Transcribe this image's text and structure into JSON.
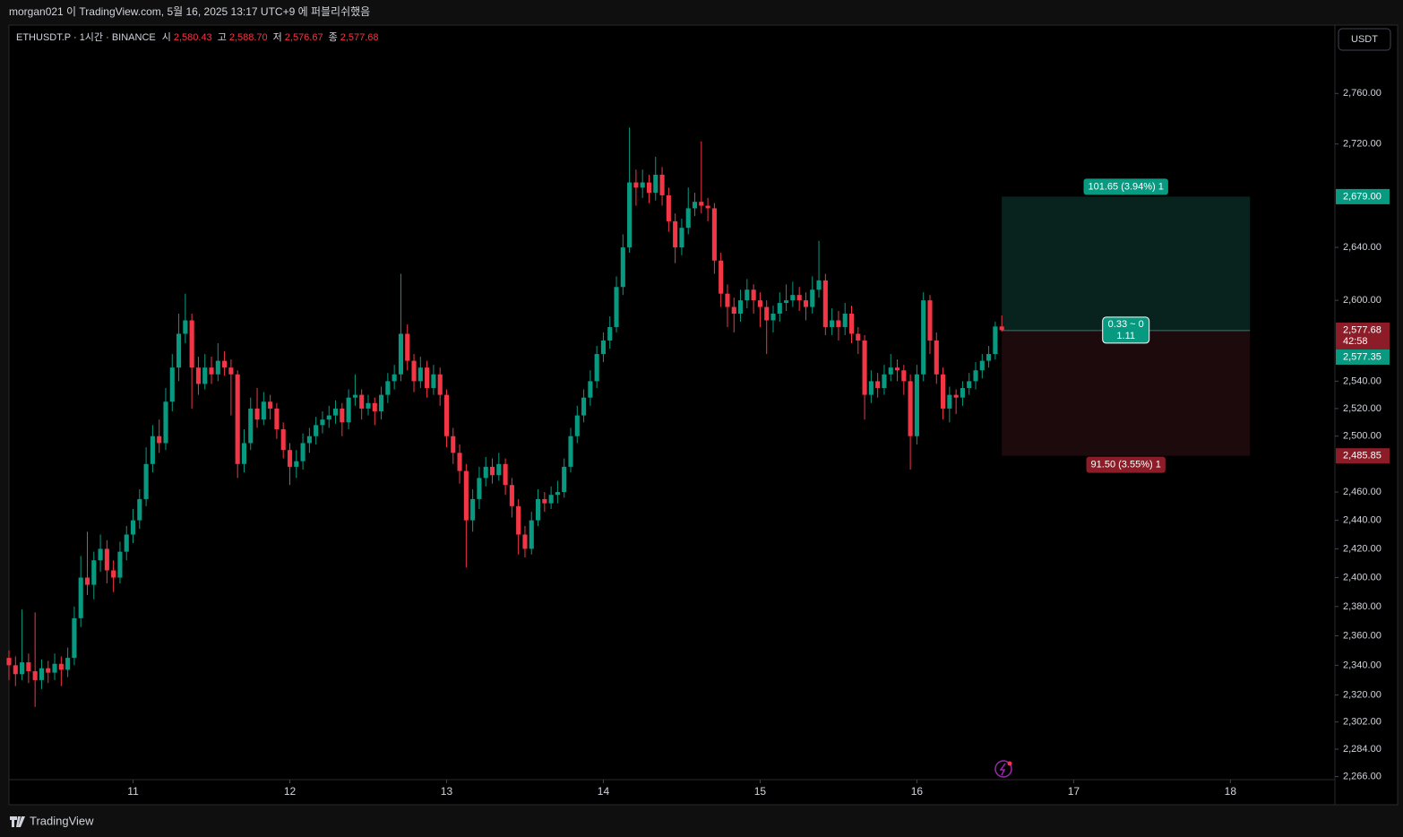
{
  "page": {
    "publish_note": "morgan021 이 TradingView.com, 5월 16, 2025 13:17 UTC+9 에 퍼블리쉬했음",
    "brand": "TradingView",
    "currency": "USDT"
  },
  "chart_data": {
    "type": "candlestick",
    "symbol": "ETHUSDT.P · 1시간 · BINANCE",
    "ohlc_header": [
      {
        "label": "시",
        "value": "2,580.43"
      },
      {
        "label": "고",
        "value": "2,588.70"
      },
      {
        "label": "저",
        "value": "2,576.67"
      },
      {
        "label": "종",
        "value": "2,577.68"
      }
    ],
    "up_color": "#089981",
    "down_color": "#f23645",
    "log_scale": true,
    "grid": false,
    "xlim": [
      -19,
      184
    ],
    "ylim": [
      2264,
      2815
    ],
    "xticks": [
      {
        "value": 0,
        "label": "11"
      },
      {
        "value": 24,
        "label": "12"
      },
      {
        "value": 48,
        "label": "13"
      },
      {
        "value": 72,
        "label": "14"
      },
      {
        "value": 96,
        "label": "15"
      },
      {
        "value": 120,
        "label": "16"
      },
      {
        "value": 144,
        "label": "17"
      },
      {
        "value": 168,
        "label": "18"
      }
    ],
    "yticks": [
      {
        "value": 2760,
        "label": "2,760.00"
      },
      {
        "value": 2720,
        "label": "2,720.00"
      },
      {
        "value": 2640,
        "label": "2,640.00"
      },
      {
        "value": 2600,
        "label": "2,600.00"
      },
      {
        "value": 2540,
        "label": "2,540.00"
      },
      {
        "value": 2520,
        "label": "2,520.00"
      },
      {
        "value": 2500,
        "label": "2,500.00"
      },
      {
        "value": 2460,
        "label": "2,460.00"
      },
      {
        "value": 2440,
        "label": "2,440.00"
      },
      {
        "value": 2420,
        "label": "2,420.00"
      },
      {
        "value": 2400,
        "label": "2,400.00"
      },
      {
        "value": 2380,
        "label": "2,380.00"
      },
      {
        "value": 2360,
        "label": "2,360.00"
      },
      {
        "value": 2340,
        "label": "2,340.00"
      },
      {
        "value": 2320,
        "label": "2,320.00"
      },
      {
        "value": 2302,
        "label": "2,302.00"
      },
      {
        "value": 2284,
        "label": "2,284.00"
      },
      {
        "value": 2266,
        "label": "2,266.00"
      }
    ],
    "x": [
      -19,
      -18,
      -17,
      -16,
      -15,
      -14,
      -13,
      -12,
      -11,
      -10,
      -9,
      -8,
      -7,
      -6,
      -5,
      -4,
      -3,
      -2,
      -1,
      0,
      1,
      2,
      3,
      4,
      5,
      6,
      7,
      8,
      9,
      10,
      11,
      12,
      13,
      14,
      15,
      16,
      17,
      18,
      19,
      20,
      21,
      22,
      23,
      24,
      25,
      26,
      27,
      28,
      29,
      30,
      31,
      32,
      33,
      34,
      35,
      36,
      37,
      38,
      39,
      40,
      41,
      42,
      43,
      44,
      45,
      46,
      47,
      48,
      49,
      50,
      51,
      52,
      53,
      54,
      55,
      56,
      57,
      58,
      59,
      60,
      61,
      62,
      63,
      64,
      65,
      66,
      67,
      68,
      69,
      70,
      71,
      72,
      73,
      74,
      75,
      76,
      77,
      78,
      79,
      80,
      81,
      82,
      83,
      84,
      85,
      86,
      87,
      88,
      89,
      90,
      91,
      92,
      93,
      94,
      95,
      96,
      97,
      98,
      99,
      100,
      101,
      102,
      103,
      104,
      105,
      106,
      107,
      108,
      109,
      110,
      111,
      112,
      113,
      114,
      115,
      116,
      117,
      118,
      119,
      120,
      121,
      122,
      123,
      124,
      125,
      126,
      127,
      128,
      129,
      130,
      131,
      132,
      133
    ],
    "candles": [
      [
        2345,
        2350,
        2330,
        2340
      ],
      [
        2340,
        2346,
        2326,
        2334
      ],
      [
        2334,
        2378,
        2330,
        2342
      ],
      [
        2342,
        2348,
        2328,
        2336
      ],
      [
        2336,
        2376,
        2312,
        2330
      ],
      [
        2330,
        2344,
        2324,
        2338
      ],
      [
        2338,
        2343,
        2328,
        2335
      ],
      [
        2335,
        2348,
        2330,
        2341
      ],
      [
        2341,
        2346,
        2326,
        2337
      ],
      [
        2337,
        2352,
        2332,
        2345
      ],
      [
        2345,
        2380,
        2340,
        2372
      ],
      [
        2372,
        2415,
        2366,
        2400
      ],
      [
        2400,
        2432,
        2388,
        2395
      ],
      [
        2395,
        2418,
        2385,
        2412
      ],
      [
        2412,
        2430,
        2404,
        2420
      ],
      [
        2420,
        2426,
        2396,
        2405
      ],
      [
        2405,
        2412,
        2390,
        2400
      ],
      [
        2400,
        2425,
        2396,
        2418
      ],
      [
        2418,
        2436,
        2412,
        2430
      ],
      [
        2430,
        2448,
        2424,
        2440
      ],
      [
        2440,
        2462,
        2434,
        2455
      ],
      [
        2455,
        2492,
        2450,
        2480
      ],
      [
        2480,
        2508,
        2474,
        2500
      ],
      [
        2500,
        2512,
        2488,
        2495
      ],
      [
        2495,
        2535,
        2490,
        2525
      ],
      [
        2525,
        2560,
        2518,
        2550
      ],
      [
        2550,
        2590,
        2540,
        2575
      ],
      [
        2575,
        2605,
        2568,
        2585
      ],
      [
        2585,
        2590,
        2520,
        2550
      ],
      [
        2550,
        2558,
        2530,
        2538
      ],
      [
        2538,
        2560,
        2534,
        2550
      ],
      [
        2550,
        2558,
        2538,
        2545
      ],
      [
        2545,
        2568,
        2540,
        2555
      ],
      [
        2555,
        2562,
        2544,
        2550
      ],
      [
        2550,
        2556,
        2515,
        2545
      ],
      [
        2545,
        2548,
        2470,
        2480
      ],
      [
        2480,
        2505,
        2474,
        2495
      ],
      [
        2495,
        2528,
        2490,
        2520
      ],
      [
        2520,
        2535,
        2506,
        2512
      ],
      [
        2512,
        2532,
        2508,
        2525
      ],
      [
        2525,
        2530,
        2512,
        2520
      ],
      [
        2520,
        2524,
        2498,
        2505
      ],
      [
        2505,
        2510,
        2484,
        2490
      ],
      [
        2490,
        2495,
        2465,
        2478
      ],
      [
        2478,
        2490,
        2470,
        2482
      ],
      [
        2482,
        2502,
        2476,
        2495
      ],
      [
        2495,
        2506,
        2488,
        2500
      ],
      [
        2500,
        2514,
        2494,
        2508
      ],
      [
        2508,
        2518,
        2502,
        2512
      ],
      [
        2512,
        2522,
        2506,
        2515
      ],
      [
        2515,
        2526,
        2509,
        2520
      ],
      [
        2520,
        2524,
        2500,
        2510
      ],
      [
        2510,
        2534,
        2505,
        2528
      ],
      [
        2528,
        2545,
        2522,
        2530
      ],
      [
        2530,
        2534,
        2512,
        2520
      ],
      [
        2520,
        2530,
        2515,
        2524
      ],
      [
        2524,
        2528,
        2508,
        2518
      ],
      [
        2518,
        2536,
        2512,
        2530
      ],
      [
        2530,
        2546,
        2524,
        2540
      ],
      [
        2540,
        2552,
        2534,
        2545
      ],
      [
        2545,
        2620,
        2540,
        2575
      ],
      [
        2575,
        2582,
        2548,
        2555
      ],
      [
        2555,
        2560,
        2532,
        2540
      ],
      [
        2540,
        2558,
        2535,
        2550
      ],
      [
        2550,
        2555,
        2528,
        2535
      ],
      [
        2535,
        2552,
        2530,
        2545
      ],
      [
        2545,
        2550,
        2522,
        2530
      ],
      [
        2530,
        2534,
        2492,
        2500
      ],
      [
        2500,
        2506,
        2480,
        2488
      ],
      [
        2488,
        2494,
        2466,
        2475
      ],
      [
        2475,
        2480,
        2407,
        2440
      ],
      [
        2440,
        2462,
        2432,
        2455
      ],
      [
        2455,
        2478,
        2448,
        2470
      ],
      [
        2470,
        2485,
        2464,
        2478
      ],
      [
        2478,
        2484,
        2466,
        2472
      ],
      [
        2472,
        2488,
        2468,
        2480
      ],
      [
        2480,
        2484,
        2458,
        2465
      ],
      [
        2465,
        2470,
        2442,
        2450
      ],
      [
        2450,
        2455,
        2416,
        2430
      ],
      [
        2430,
        2436,
        2414,
        2420
      ],
      [
        2420,
        2446,
        2416,
        2440
      ],
      [
        2440,
        2462,
        2436,
        2455
      ],
      [
        2455,
        2460,
        2446,
        2452
      ],
      [
        2452,
        2464,
        2448,
        2458
      ],
      [
        2458,
        2468,
        2452,
        2460
      ],
      [
        2460,
        2484,
        2456,
        2478
      ],
      [
        2478,
        2506,
        2474,
        2500
      ],
      [
        2500,
        2522,
        2495,
        2515
      ],
      [
        2515,
        2534,
        2510,
        2528
      ],
      [
        2528,
        2548,
        2522,
        2540
      ],
      [
        2540,
        2566,
        2535,
        2560
      ],
      [
        2560,
        2576,
        2554,
        2570
      ],
      [
        2570,
        2588,
        2564,
        2580
      ],
      [
        2580,
        2618,
        2576,
        2610
      ],
      [
        2610,
        2650,
        2604,
        2640
      ],
      [
        2640,
        2733,
        2636,
        2690
      ],
      [
        2690,
        2700,
        2672,
        2686
      ],
      [
        2686,
        2700,
        2678,
        2690
      ],
      [
        2690,
        2696,
        2674,
        2682
      ],
      [
        2682,
        2710,
        2676,
        2696
      ],
      [
        2696,
        2702,
        2672,
        2680
      ],
      [
        2680,
        2686,
        2652,
        2660
      ],
      [
        2660,
        2666,
        2628,
        2640
      ],
      [
        2640,
        2662,
        2634,
        2655
      ],
      [
        2655,
        2686,
        2650,
        2670
      ],
      [
        2670,
        2682,
        2664,
        2675
      ],
      [
        2675,
        2722,
        2666,
        2672
      ],
      [
        2672,
        2678,
        2660,
        2670
      ],
      [
        2670,
        2674,
        2620,
        2630
      ],
      [
        2630,
        2636,
        2595,
        2605
      ],
      [
        2605,
        2612,
        2580,
        2595
      ],
      [
        2595,
        2602,
        2576,
        2590
      ],
      [
        2590,
        2608,
        2584,
        2600
      ],
      [
        2600,
        2616,
        2594,
        2608
      ],
      [
        2608,
        2612,
        2590,
        2600
      ],
      [
        2600,
        2606,
        2580,
        2595
      ],
      [
        2595,
        2600,
        2560,
        2585
      ],
      [
        2585,
        2596,
        2576,
        2590
      ],
      [
        2590,
        2606,
        2584,
        2598
      ],
      [
        2598,
        2612,
        2592,
        2600
      ],
      [
        2600,
        2614,
        2595,
        2604
      ],
      [
        2604,
        2610,
        2592,
        2600
      ],
      [
        2600,
        2606,
        2585,
        2595
      ],
      [
        2595,
        2618,
        2590,
        2608
      ],
      [
        2608,
        2645,
        2602,
        2615
      ],
      [
        2615,
        2620,
        2574,
        2580
      ],
      [
        2580,
        2594,
        2574,
        2585
      ],
      [
        2585,
        2592,
        2570,
        2580
      ],
      [
        2580,
        2598,
        2574,
        2590
      ],
      [
        2590,
        2596,
        2568,
        2575
      ],
      [
        2575,
        2580,
        2560,
        2570
      ],
      [
        2570,
        2574,
        2512,
        2530
      ],
      [
        2530,
        2548,
        2524,
        2540
      ],
      [
        2540,
        2546,
        2528,
        2535
      ],
      [
        2535,
        2552,
        2530,
        2545
      ],
      [
        2545,
        2560,
        2540,
        2550
      ],
      [
        2550,
        2556,
        2540,
        2548
      ],
      [
        2548,
        2552,
        2530,
        2540
      ],
      [
        2540,
        2545,
        2476,
        2500
      ],
      [
        2500,
        2552,
        2494,
        2545
      ],
      [
        2545,
        2606,
        2540,
        2600
      ],
      [
        2600,
        2604,
        2560,
        2570
      ],
      [
        2570,
        2576,
        2538,
        2545
      ],
      [
        2545,
        2550,
        2512,
        2520
      ],
      [
        2520,
        2536,
        2510,
        2530
      ],
      [
        2530,
        2534,
        2516,
        2528
      ],
      [
        2528,
        2540,
        2522,
        2535
      ],
      [
        2535,
        2546,
        2530,
        2540
      ],
      [
        2540,
        2554,
        2534,
        2548
      ],
      [
        2548,
        2560,
        2542,
        2555
      ],
      [
        2555,
        2566,
        2550,
        2560
      ],
      [
        2560,
        2584,
        2556,
        2580.43
      ],
      [
        2580.43,
        2588.7,
        2576.67,
        2577.68
      ]
    ],
    "position": {
      "x_start": 133,
      "x_end": 171,
      "target": 2679,
      "entry": 2577.35,
      "stop": 2485.85,
      "target_text": "101.65 (3.94%) 1",
      "stop_text": "91.50 (3.55%) 1",
      "center_text": [
        "0.33 ~ 0",
        "1.11"
      ]
    },
    "price_labels": [
      {
        "value": 2679,
        "label": "2,679.00",
        "color": "#089981"
      },
      {
        "value": 2577.68,
        "label": "2,577.68",
        "sub": "42:58",
        "color": "#8c1c27"
      },
      {
        "value": 2577.35,
        "label": "2,577.35",
        "color": "#089981"
      },
      {
        "value": 2485.85,
        "label": "2,485.85",
        "color": "#8c1c27"
      }
    ]
  }
}
